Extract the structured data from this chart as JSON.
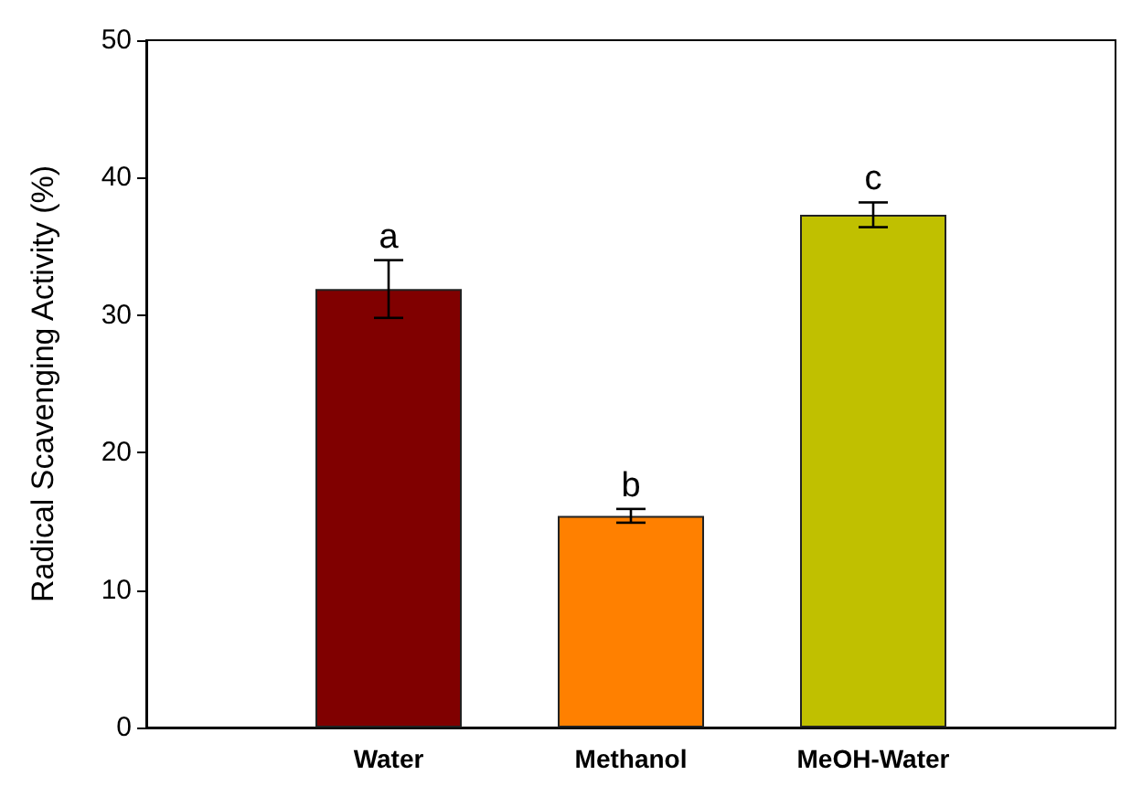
{
  "chart_data": {
    "type": "bar",
    "ylabel": "Radical Scavenging Activity (%)",
    "categories": [
      "Water",
      "Methanol",
      "MeOH-Water"
    ],
    "values": [
      31.9,
      15.4,
      37.3
    ],
    "colors": [
      "#800000",
      "#ff8000",
      "#c0c000"
    ],
    "errors": [
      2.1,
      0.5,
      0.9
    ],
    "ylim": [
      0,
      50
    ],
    "yticks": [
      0,
      10,
      20,
      30,
      40,
      50
    ],
    "grid": false,
    "annotations": [
      "a",
      "b",
      "c"
    ]
  }
}
